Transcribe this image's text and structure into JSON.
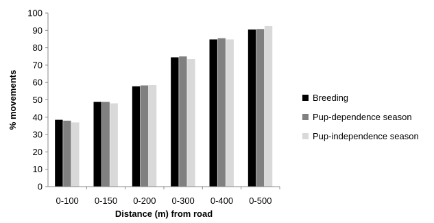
{
  "chart_data": {
    "type": "bar",
    "title": "",
    "xlabel": "Distance (m) from road",
    "ylabel": "% movements",
    "ylim": [
      0,
      100
    ],
    "yticks": [
      0,
      10,
      20,
      30,
      40,
      50,
      60,
      70,
      80,
      90,
      100
    ],
    "categories": [
      "0-100",
      "0-150",
      "0-200",
      "0-300",
      "0-400",
      "0-500"
    ],
    "series": [
      {
        "name": "Breeding",
        "color": "#000000",
        "values": [
          38.5,
          48.8,
          57.8,
          74.5,
          84.8,
          90.5
        ]
      },
      {
        "name": "Pup-dependence season",
        "color": "#808080",
        "values": [
          38.0,
          48.8,
          58.3,
          75.0,
          85.5,
          90.8
        ]
      },
      {
        "name": "Pup-independence season",
        "color": "#d9d9d9",
        "values": [
          37.0,
          48.0,
          58.5,
          73.5,
          84.8,
          92.5
        ]
      }
    ],
    "grid": false,
    "legend_position": "right"
  }
}
